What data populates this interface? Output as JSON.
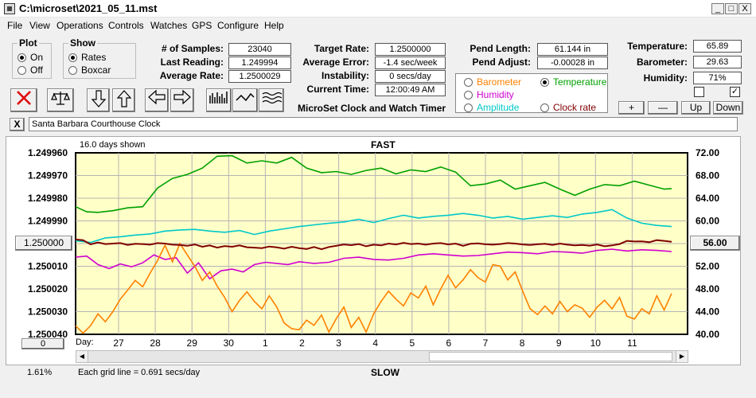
{
  "window": {
    "title": "C:\\microset\\2021_05_11.mst",
    "min": "_",
    "max": "□",
    "close": "X"
  },
  "menu": [
    "File",
    "View",
    "Operations",
    "Controls",
    "Watches",
    "GPS",
    "Configure",
    "Help"
  ],
  "plot": {
    "title": "Plot",
    "on": "On",
    "off": "Off",
    "selected": "on"
  },
  "show": {
    "title": "Show",
    "rates": "Rates",
    "boxcar": "Boxcar",
    "selected": "rates"
  },
  "stats": {
    "samples_label": "# of Samples:",
    "samples": "23040",
    "last_label": "Last Reading:",
    "last": "1.249994",
    "avg_label": "Average Rate:",
    "avg": "1.2500029",
    "target_label": "Target Rate:",
    "target": "1.2500000",
    "err_label": "Average Error:",
    "err": "-1.4 sec/week",
    "instab_label": "Instability:",
    "instab": "0 secs/day",
    "time_label": "Current Time:",
    "time": "12:00:49 AM",
    "pendlen_label": "Pend Length:",
    "pendlen": "61.144 in",
    "pendadj_label": "Pend Adjust:",
    "pendadj": "-0.00028 in",
    "temp_label": "Temperature:",
    "temp": "65.89",
    "baro_label": "Barometer:",
    "baro": "29.63",
    "hum_label": "Humidity:",
    "hum": "71%"
  },
  "app_title": "MicroSet Clock and Watch Timer",
  "aux": {
    "barometer": "Barometer",
    "temperature": "Temperature",
    "humidity": "Humidity",
    "amplitude": "Amplitude",
    "clockrate": "Clock rate",
    "selected": "temperature",
    "colors": {
      "barometer": "#ff8000",
      "temperature": "#00a000",
      "humidity": "#d000d0",
      "amplitude": "#00c8c8",
      "clockrate": "#800000"
    }
  },
  "adjust_buttons": {
    "plus": "+",
    "minus": "—",
    "up": "Up",
    "down": "Down"
  },
  "source": {
    "close": "X",
    "name": "Santa Barbara Courthouse Clock"
  },
  "chart_header": {
    "days_shown": "16.0 days shown",
    "fast": "FAST",
    "slow": "SLOW",
    "grid_note": "Each grid line = 0.691 secs/day"
  },
  "left_button": "1.250000",
  "right_button": "56.00",
  "scroll_button": "0",
  "status_pct": "1.61%",
  "day_label": "Day:",
  "chart_data": {
    "type": "line",
    "x_ticks": [
      "27",
      "28",
      "29",
      "30",
      "1",
      "2",
      "3",
      "4",
      "5",
      "6",
      "7",
      "8",
      "9",
      "10",
      "11"
    ],
    "y_left_ticks": [
      "1.249960",
      "1.249970",
      "1.249980",
      "1.249990",
      "1.250000",
      "1.250010",
      "1.250020",
      "1.250030",
      "1.250040"
    ],
    "y_right_ticks": [
      "72.00",
      "68.00",
      "64.00",
      "60.00",
      "56.00",
      "52.00",
      "48.00",
      "44.00",
      "40.00"
    ],
    "y_right_range": [
      40,
      72
    ],
    "series": [
      {
        "name": "Temperature",
        "color": "#00a000",
        "x": [
          0,
          0.3,
          0.6,
          1,
          1.4,
          1.8,
          2.2,
          2.6,
          3,
          3.4,
          3.8,
          4.2,
          4.6,
          5,
          5.4,
          5.8,
          6.2,
          6.6,
          7,
          7.4,
          7.8,
          8.2,
          8.6,
          9,
          9.4,
          9.8,
          10.2,
          10.6,
          11,
          11.4,
          11.8,
          12.2,
          12.6,
          13,
          13.4,
          13.8,
          14.2,
          14.6,
          15,
          15.4,
          15.8,
          16
        ],
        "y": [
          62.5,
          61.6,
          61.5,
          61.8,
          62.3,
          62.5,
          65.8,
          67.5,
          68.2,
          69.3,
          71.4,
          71.5,
          70.2,
          70.6,
          70.2,
          71.2,
          69.3,
          68.5,
          68.7,
          68.2,
          68.9,
          69.3,
          68.3,
          69.0,
          68.7,
          69.5,
          68.6,
          66.2,
          66.5,
          67.2,
          65.6,
          66.2,
          66.8,
          65.6,
          64.5,
          65.6,
          66.4,
          66.2,
          67.0,
          66.3,
          65.6,
          65.7
        ]
      },
      {
        "name": "Amplitude",
        "color": "#00c8c8",
        "x": [
          0,
          0.4,
          0.8,
          1.2,
          1.6,
          2.0,
          2.4,
          2.8,
          3.2,
          3.6,
          4.0,
          4.4,
          4.8,
          5.2,
          5.6,
          6.0,
          6.4,
          6.8,
          7.2,
          7.6,
          8.0,
          8.4,
          8.8,
          9.2,
          9.6,
          10.0,
          10.4,
          10.8,
          11.2,
          11.6,
          12.0,
          12.4,
          12.8,
          13.2,
          13.6,
          14.0,
          14.4,
          14.8,
          15.2,
          15.6,
          16
        ],
        "y": [
          56.5,
          56.2,
          57.0,
          57.2,
          57.5,
          57.7,
          58.2,
          58.4,
          58.5,
          58.2,
          58.0,
          58.3,
          57.6,
          58.2,
          58.6,
          59.0,
          59.3,
          59.6,
          59.8,
          60.3,
          59.7,
          60.4,
          61.0,
          60.5,
          60.8,
          61.0,
          61.3,
          61.0,
          60.5,
          60.8,
          60.3,
          60.6,
          60.9,
          60.6,
          61.2,
          61.5,
          62.0,
          60.5,
          59.6,
          59.2,
          59.0
        ]
      },
      {
        "name": "Humidity",
        "color": "#d000d0",
        "x": [
          0,
          0.3,
          0.6,
          0.9,
          1.2,
          1.5,
          1.8,
          2.1,
          2.4,
          2.7,
          3.0,
          3.3,
          3.6,
          3.9,
          4.2,
          4.5,
          4.8,
          5.1,
          5.4,
          5.7,
          6.0,
          6.4,
          6.8,
          7.2,
          7.6,
          8.0,
          8.4,
          8.8,
          9.2,
          9.6,
          10.0,
          10.4,
          10.8,
          11.2,
          11.6,
          12.0,
          12.4,
          12.8,
          13.2,
          13.6,
          14.0,
          14.4,
          14.8,
          15.2,
          15.6,
          16
        ],
        "y": [
          53.6,
          53.8,
          52.3,
          51.6,
          52.4,
          51.9,
          52.6,
          54.0,
          53.2,
          53.5,
          50.8,
          52.6,
          49.8,
          51.2,
          51.5,
          51.0,
          52.3,
          52.7,
          52.5,
          52.3,
          52.8,
          52.5,
          52.7,
          53.4,
          53.6,
          53.2,
          53.1,
          53.4,
          54.0,
          54.2,
          54.0,
          53.8,
          53.9,
          54.2,
          54.5,
          54.4,
          54.2,
          54.6,
          54.5,
          54.3,
          54.8,
          55.0,
          54.7,
          54.9,
          54.8,
          54.6
        ]
      },
      {
        "name": "Barometer",
        "color": "#ff8000",
        "x": [
          0,
          0.2,
          0.4,
          0.6,
          0.8,
          1.0,
          1.2,
          1.4,
          1.6,
          1.8,
          2.0,
          2.2,
          2.4,
          2.6,
          2.8,
          3.0,
          3.2,
          3.4,
          3.6,
          3.8,
          4.0,
          4.2,
          4.4,
          4.6,
          4.8,
          5.0,
          5.2,
          5.4,
          5.6,
          5.8,
          6.0,
          6.2,
          6.4,
          6.6,
          6.8,
          7.0,
          7.2,
          7.4,
          7.6,
          7.8,
          8.0,
          8.2,
          8.4,
          8.6,
          8.8,
          9.0,
          9.2,
          9.4,
          9.6,
          9.8,
          10.0,
          10.2,
          10.4,
          10.6,
          10.8,
          11.0,
          11.2,
          11.4,
          11.6,
          11.8,
          12.0,
          12.2,
          12.4,
          12.6,
          12.8,
          13.0,
          13.2,
          13.4,
          13.6,
          13.8,
          14.0,
          14.2,
          14.4,
          14.6,
          14.8,
          15.0,
          15.2,
          15.4,
          15.6,
          15.8,
          16
        ],
        "y": [
          41.5,
          40.2,
          41.5,
          43.6,
          42.2,
          44.0,
          46.2,
          47.8,
          49.5,
          48.4,
          50.8,
          53.0,
          55.7,
          52.8,
          56.0,
          54.0,
          52.0,
          49.5,
          51.0,
          48.5,
          46.5,
          44.0,
          46.0,
          47.5,
          45.8,
          44.5,
          46.8,
          44.8,
          42.0,
          41.0,
          40.8,
          42.5,
          41.6,
          43.4,
          40.4,
          42.8,
          44.8,
          41.2,
          43.0,
          40.4,
          43.6,
          45.8,
          47.6,
          46.2,
          45.0,
          47.3,
          46.4,
          48.5,
          45.2,
          48.0,
          50.4,
          48.2,
          49.6,
          51.4,
          50.0,
          49.2,
          52.3,
          52.0,
          49.6,
          51.0,
          47.6,
          44.5,
          43.5,
          45.0,
          43.6,
          45.8,
          44.0,
          45.2,
          44.6,
          43.0,
          44.8,
          46.0,
          44.5,
          46.5,
          43.2,
          42.7,
          44.5,
          43.6,
          46.8,
          44.3,
          47.2
        ]
      },
      {
        "name": "Clock rate",
        "color": "#800000",
        "x": [
          0,
          0.2,
          0.4,
          0.6,
          0.8,
          1.0,
          1.2,
          1.4,
          1.6,
          1.8,
          2.0,
          2.2,
          2.4,
          2.6,
          2.8,
          3.0,
          3.2,
          3.4,
          3.6,
          3.8,
          4.0,
          4.2,
          4.4,
          4.6,
          4.8,
          5.0,
          5.2,
          5.4,
          5.6,
          5.8,
          6.0,
          6.2,
          6.4,
          6.6,
          6.8,
          7.0,
          7.2,
          7.4,
          7.6,
          7.8,
          8.0,
          8.2,
          8.4,
          8.6,
          8.8,
          9.0,
          9.2,
          9.4,
          9.6,
          9.8,
          10.0,
          10.2,
          10.4,
          10.6,
          10.8,
          11.0,
          11.2,
          11.4,
          11.6,
          11.8,
          12.0,
          12.2,
          12.4,
          12.6,
          12.8,
          13.0,
          13.2,
          13.4,
          13.6,
          13.8,
          14.0,
          14.2,
          14.4,
          14.6,
          14.8,
          15.0,
          15.2,
          15.4,
          15.6,
          15.8,
          16
        ],
        "y": [
          1.2499982,
          1.2499985,
          1.2500003,
          1.2499995,
          1.2500002,
          1.25,
          1.2499998,
          1.2500006,
          1.2500001,
          1.2500002,
          1.2500005,
          1.2499998,
          1.25,
          1.2500005,
          1.2500006,
          1.250001,
          1.2500004,
          1.2500014,
          1.2500008,
          1.2500018,
          1.2500011,
          1.2500014,
          1.2500008,
          1.2500016,
          1.2500018,
          1.250002,
          1.2500013,
          1.2500017,
          1.2500022,
          1.2500014,
          1.250002,
          1.2500024,
          1.2500015,
          1.2500025,
          1.2500015,
          1.250001,
          1.2500004,
          1.2500007,
          1.2500002,
          1.2500012,
          1.2500005,
          1.2500008,
          1.25,
          1.2500004,
          1.2499997,
          1.2500002,
          1.25,
          1.2500005,
          1.25,
          1.2499998,
          1.2500004,
          1.25,
          1.250001,
          1.2500001,
          1.2499999,
          1.2500003,
          1.2500005,
          1.2500002,
          1.2499998,
          1.25,
          1.2500004,
          1.2500006,
          1.2500003,
          1.2500001,
          1.2500006,
          1.25,
          1.2500005,
          1.2500008,
          1.2500006,
          1.2500009,
          1.2500004,
          1.2500012,
          1.2500008,
          1.2500002,
          1.2499988,
          1.2499991,
          1.249999,
          1.2499994,
          1.2499985,
          1.2499988,
          1.2499992
        ]
      }
    ]
  }
}
